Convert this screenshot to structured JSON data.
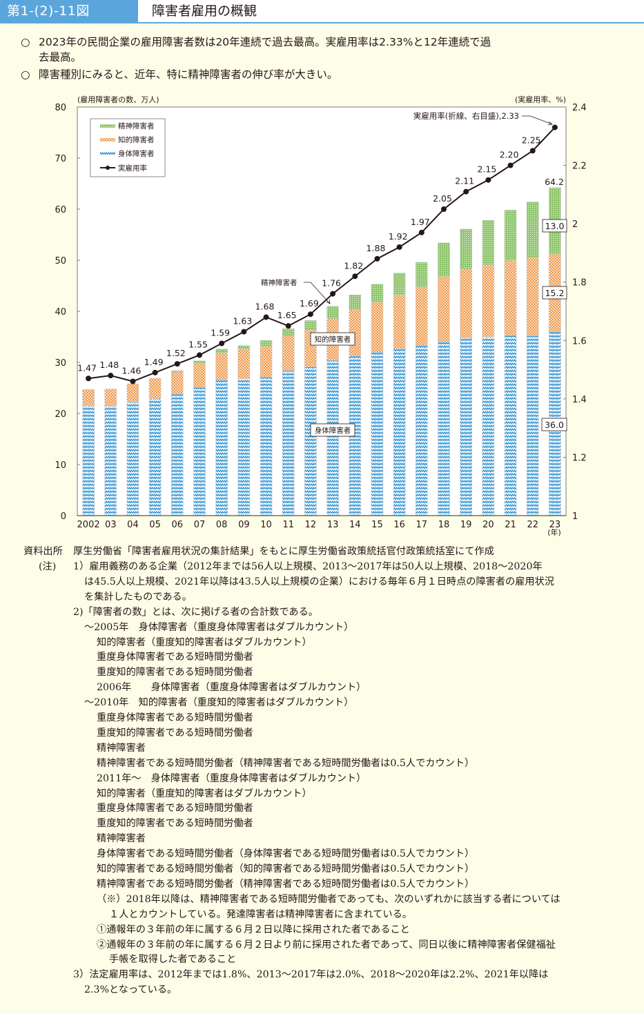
{
  "header": {
    "figure_number": "第1-(2)-11図",
    "title": "障害者雇用の概観"
  },
  "summary": [
    {
      "marker": "○",
      "text": "2023年の民間企業の雇用障害者数は20年連続で過去最高。実雇用率は2.33%と12年連続で過",
      "cont": "去最高。"
    },
    {
      "marker": "○",
      "text": "障害種別にみると、近年、特に精神障害者の伸び率が大きい。",
      "cont": ""
    }
  ],
  "chart_data": {
    "type": "bar",
    "stacked": true,
    "categories": [
      "2002",
      "03",
      "04",
      "05",
      "06",
      "07",
      "08",
      "09",
      "10",
      "11",
      "12",
      "13",
      "14",
      "15",
      "16",
      "17",
      "18",
      "19",
      "20",
      "21",
      "22",
      "23"
    ],
    "x_unit_label": "(年)",
    "ylabel_left": "(雇用障害者の数、万人)",
    "ylabel_right": "(実雇用率、%)",
    "ylim_left": [
      0,
      80
    ],
    "yticks_left": [
      0,
      10,
      20,
      30,
      40,
      50,
      60,
      70,
      80
    ],
    "ylim_right": [
      1,
      2.4
    ],
    "yticks_right": [
      "1",
      "1.2",
      "1.4",
      "1.6",
      "1.8",
      "2",
      "2.2",
      "2.4"
    ],
    "series": [
      {
        "name": "身体障害者",
        "color": "#3d9ad6",
        "pattern": "zigzag",
        "values": [
          21.5,
          21.4,
          22.2,
          22.9,
          23.8,
          25.1,
          26.6,
          26.8,
          27.1,
          28.4,
          29.1,
          30.4,
          31.3,
          32.0,
          32.7,
          33.3,
          34.0,
          34.8,
          35.0,
          35.3,
          35.2,
          36.0
        ]
      },
      {
        "name": "知的障害者",
        "color": "#f19a4c",
        "pattern": "crosshatch",
        "values": [
          3.2,
          3.4,
          3.6,
          4.0,
          4.3,
          4.7,
          5.2,
          5.8,
          6.1,
          6.8,
          7.2,
          8.2,
          9.0,
          9.8,
          10.5,
          11.4,
          12.8,
          13.5,
          14.1,
          14.7,
          15.3,
          15.2
        ]
      },
      {
        "name": "精神障害者",
        "color": "#8cc46a",
        "pattern": "grid",
        "values": [
          0,
          0,
          0,
          0.0,
          0.3,
          0.5,
          0.8,
          0.7,
          1.1,
          1.4,
          1.9,
          2.4,
          2.9,
          3.5,
          4.3,
          4.9,
          6.6,
          7.8,
          8.7,
          9.8,
          10.9,
          13.0
        ]
      }
    ],
    "line": {
      "name": "実雇用率",
      "axis": "right",
      "color": "#231815",
      "values": [
        1.47,
        1.48,
        1.46,
        1.49,
        1.52,
        1.55,
        1.59,
        1.63,
        1.68,
        1.65,
        1.69,
        1.76,
        1.82,
        1.88,
        1.92,
        1.97,
        2.05,
        2.11,
        2.15,
        2.2,
        2.25,
        2.33
      ],
      "labels": [
        "1.47",
        "1.48",
        "1.46",
        "1.49",
        "1.52",
        "1.55",
        "1.59",
        "1.63",
        "1.68",
        "1.65",
        "1.69",
        "1.76",
        "1.82",
        "1.88",
        "1.92",
        "1.97",
        "2.05",
        "2.11",
        "2.15",
        "2.20",
        "2.25",
        ""
      ]
    },
    "legend": {
      "placement": "top-left",
      "entries": [
        "精神障害者",
        "知的障害者",
        "身体障害者",
        "実雇用率"
      ]
    },
    "annotations": {
      "rate_callout": "実雇用率(折線、右目盛),2.33",
      "total_2023": "64.2",
      "mental_2023": "13.0",
      "intellectual_2023": "15.2",
      "physical_2023": "36.0",
      "label_mental": "精神障害者",
      "label_intellectual": "知的障害者",
      "label_physical": "身体障害者"
    },
    "grid": false
  },
  "notes": {
    "source_label": "資料出所",
    "source_text": "厚生労働省「障害者雇用状況の集計結果」をもとに厚生労働省政策統括官付政策統括室にて作成",
    "note_label": "(注)",
    "lines": [
      "1）雇用義務のある企業（2012年までは56人以上規模、2013～2017年は50人以上規模、2018～2020年",
      "は45.5人以上規模、2021年以降は43.5人以上規模の企業）における毎年６月１日時点の障害者の雇用状況",
      "を集計したものである。",
      "2)「障害者の数」とは、次に掲げる者の合計数である。",
      "～2005年　身体障害者（重度身体障害者はダブルカウント）",
      "知的障害者（重度知的障害者はダブルカウント）",
      "重度身体障害者である短時間労働者",
      "重度知的障害者である短時間労働者",
      "2006年　　身体障害者（重度身体障害者はダブルカウント）",
      "～2010年　知的障害者（重度知的障害者はダブルカウント）",
      "重度身体障害者である短時間労働者",
      "重度知的障害者である短時間労働者",
      "精神障害者",
      "精神障害者である短時間労働者（精神障害者である短時間労働者は0.5人でカウント）",
      "2011年～　身体障害者（重度身体障害者はダブルカウント）",
      "知的障害者（重度知的障害者はダブルカウント）",
      "重度身体障害者である短時間労働者",
      "重度知的障害者である短時間労働者",
      "精神障害者",
      "身体障害者である短時間労働者（身体障害者である短時間労働者は0.5人でカウント）",
      "知的障害者である短時間労働者（知的障害者である短時間労働者は0.5人でカウント）",
      "精神障害者である短時間労働者（精神障害者である短時間労働者は0.5人でカウント）",
      "（※）2018年以降は、精神障害者である短時間労働者であっても、次のいずれかに該当する者については",
      "１人とカウントしている。発達障害者は精神障害者に含まれている。",
      "①通報年の３年前の年に属する６月２日以降に採用された者であること",
      "②通報年の３年前の年に属する６月２日より前に採用された者であって、同日以後に精神障害者保健福祉",
      "手帳を取得した者であること",
      "3）法定雇用率は、2012年までは1.8%、2013～2017年は2.0%、2018～2020年は2.2%、2021年以降は",
      "2.3%となっている。"
    ]
  }
}
